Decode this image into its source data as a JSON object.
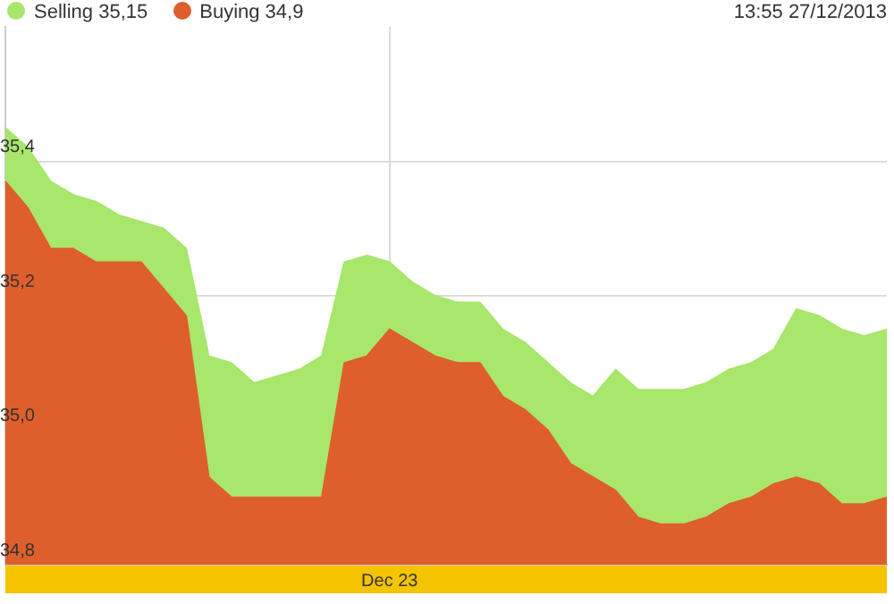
{
  "chart_data": {
    "type": "area",
    "annotations": [
      "13:55 27/12/2013"
    ],
    "categories": [
      null,
      null,
      null,
      null,
      null,
      null,
      null,
      null,
      null,
      null,
      null,
      null,
      null,
      null,
      null,
      null,
      null,
      "Dec 23",
      null,
      null,
      null,
      null,
      null,
      null,
      null,
      null,
      null,
      null,
      null,
      null,
      null,
      null,
      null,
      null,
      null,
      null,
      null,
      null,
      null,
      null
    ],
    "series": [
      {
        "name": "Selling 35,15",
        "color": "#a8e66c",
        "values": [
          35.45,
          35.42,
          35.37,
          35.35,
          35.34,
          35.32,
          35.31,
          35.3,
          35.27,
          35.11,
          35.1,
          35.07,
          35.08,
          35.09,
          35.11,
          35.25,
          35.26,
          35.25,
          35.22,
          35.2,
          35.19,
          35.19,
          35.15,
          35.13,
          35.1,
          35.07,
          35.05,
          35.09,
          35.06,
          35.06,
          35.06,
          35.07,
          35.09,
          35.1,
          35.12,
          35.18,
          35.17,
          35.15,
          35.14,
          35.15
        ]
      },
      {
        "name": "Buying 34,9",
        "color": "#de5f2b",
        "values": [
          35.37,
          35.33,
          35.27,
          35.27,
          35.25,
          35.25,
          35.25,
          35.21,
          35.17,
          34.93,
          34.9,
          34.9,
          34.9,
          34.9,
          34.9,
          35.1,
          35.11,
          35.15,
          35.13,
          35.11,
          35.1,
          35.1,
          35.05,
          35.03,
          35.0,
          34.95,
          34.93,
          34.91,
          34.87,
          34.86,
          34.86,
          34.87,
          34.89,
          34.9,
          34.92,
          34.93,
          34.92,
          34.89,
          34.89,
          34.9
        ]
      }
    ],
    "ylim": [
      34.8,
      35.6
    ],
    "yticks": [
      {
        "value": 34.8,
        "label": "34,8"
      },
      {
        "value": 35.0,
        "label": "35,0"
      },
      {
        "value": 35.2,
        "label": "35,2"
      },
      {
        "value": 35.4,
        "label": "35,4"
      }
    ],
    "grid": true,
    "legend": "top left",
    "marker": "none"
  }
}
